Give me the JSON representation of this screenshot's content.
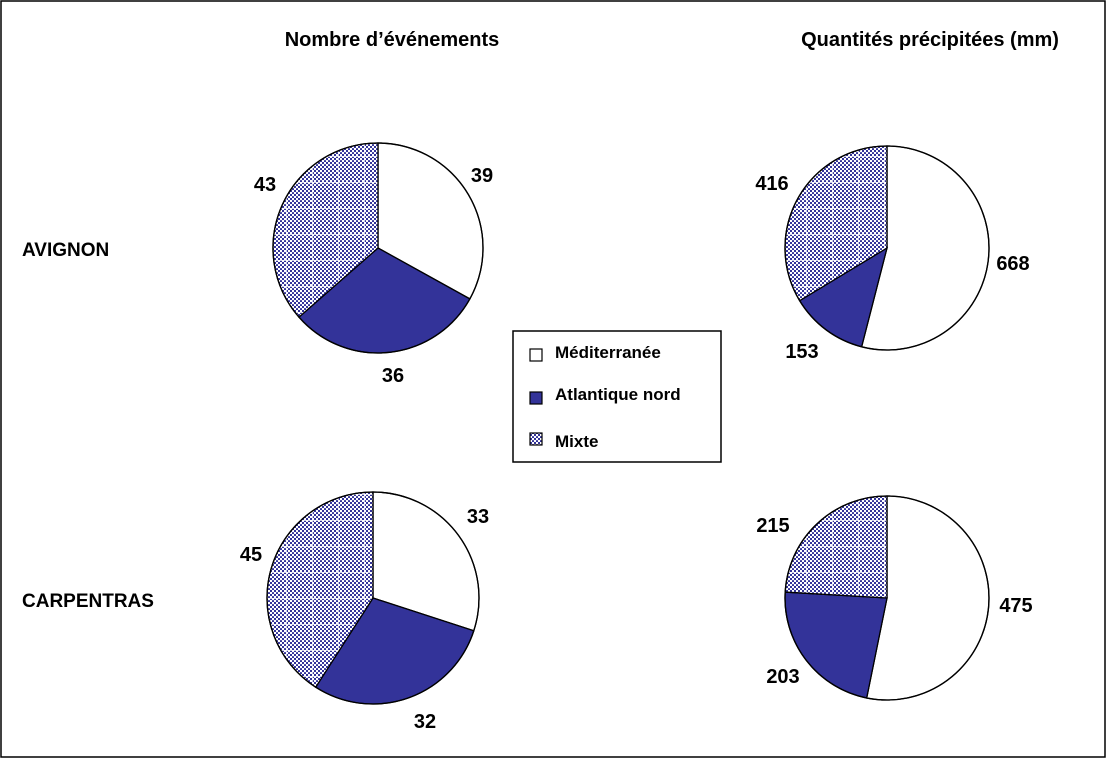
{
  "column_titles": [
    "Nombre d’événements",
    "Quantités précipitées (mm)"
  ],
  "row_labels": [
    "AVIGNON",
    "CARPENTRAS"
  ],
  "legend": {
    "items": [
      {
        "label": "Méditerranée",
        "color": "#ffffff",
        "pattern": "none"
      },
      {
        "label": "Atlantique nord",
        "color": "#333399",
        "pattern": "solid"
      },
      {
        "label": "Mixte",
        "color": "#333399",
        "pattern": "checker"
      }
    ]
  },
  "colors": {
    "atlantique": "#333399",
    "mixte_pattern": "#333399",
    "outline": "#000000"
  },
  "chart_data": [
    {
      "type": "pie",
      "station": "AVIGNON",
      "panel": "Nombre d’événements",
      "categories": [
        "Méditerranée",
        "Atlantique nord",
        "Mixte"
      ],
      "values": [
        39,
        36,
        43
      ]
    },
    {
      "type": "pie",
      "station": "AVIGNON",
      "panel": "Quantités précipitées (mm)",
      "categories": [
        "Méditerranée",
        "Atlantique nord",
        "Mixte"
      ],
      "values": [
        668,
        153,
        416
      ]
    },
    {
      "type": "pie",
      "station": "CARPENTRAS",
      "panel": "Nombre d’événements",
      "categories": [
        "Méditerranée",
        "Atlantique nord",
        "Mixte"
      ],
      "values": [
        33,
        32,
        45
      ]
    },
    {
      "type": "pie",
      "station": "CARPENTRAS",
      "panel": "Quantités précipitées (mm)",
      "categories": [
        "Méditerranée",
        "Atlantique nord",
        "Mixte"
      ],
      "values": [
        475,
        203,
        215
      ]
    }
  ]
}
